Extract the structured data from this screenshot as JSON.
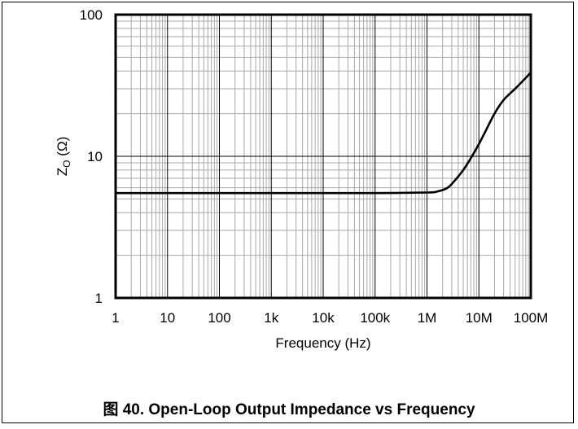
{
  "caption": "图 40. Open-Loop Output Impedance vs Frequency",
  "chart_data": {
    "type": "line",
    "title": "",
    "xlabel": "Frequency (Hz)",
    "ylabel_main": "Z",
    "ylabel_sub": "O",
    "ylabel_unit": " (Ω)",
    "xscale": "log",
    "yscale": "log",
    "xlim": [
      1,
      100000000
    ],
    "ylim": [
      1,
      100
    ],
    "grid": true,
    "x_ticks": [
      {
        "value": 1,
        "label": "1"
      },
      {
        "value": 10,
        "label": "10"
      },
      {
        "value": 100,
        "label": "100"
      },
      {
        "value": 1000,
        "label": "1k"
      },
      {
        "value": 10000,
        "label": "10k"
      },
      {
        "value": 100000,
        "label": "100k"
      },
      {
        "value": 1000000,
        "label": "1M"
      },
      {
        "value": 10000000,
        "label": "10M"
      },
      {
        "value": 100000000,
        "label": "100M"
      }
    ],
    "y_ticks": [
      {
        "value": 1,
        "label": "1"
      },
      {
        "value": 10,
        "label": "10"
      },
      {
        "value": 100,
        "label": "100"
      }
    ],
    "series": [
      {
        "color": "#000000",
        "x": [
          1,
          10,
          100,
          1000,
          10000,
          100000,
          1000000,
          1600000,
          2500000,
          3500000,
          5000000,
          7000000,
          10000000,
          14000000,
          20000000,
          30000000,
          50000000,
          70000000,
          100000000
        ],
        "y": [
          5.5,
          5.5,
          5.5,
          5.5,
          5.5,
          5.5,
          5.55,
          5.65,
          6.0,
          6.8,
          8.0,
          9.7,
          12.2,
          15.5,
          20.0,
          25.0,
          30.0,
          34.0,
          39.0
        ]
      }
    ]
  }
}
